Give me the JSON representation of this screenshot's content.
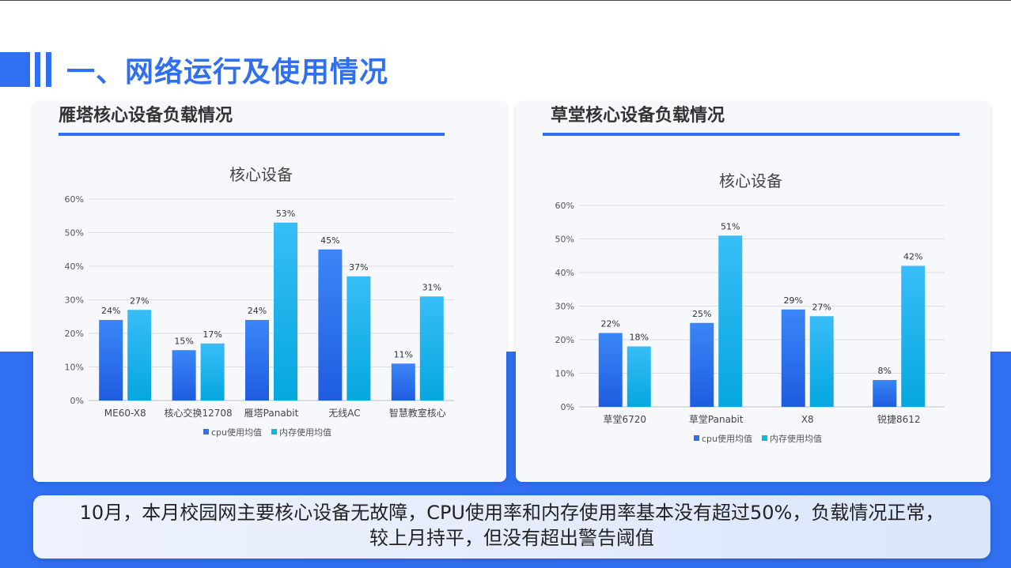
{
  "page": {
    "title": "一、网络运行及使用情况",
    "summary_line1": "10月，本月校园网主要核心设备无故障，CPU使用率和内存使用率基本没有超过50%，负载情况正常，",
    "summary_line2": "较上月持平，但没有超出警告阈值"
  },
  "panels": [
    {
      "title": "雁塔核心设备负载情况"
    },
    {
      "title": "草堂核心设备负载情况"
    }
  ],
  "colors": {
    "accent": "#2f6ff0",
    "cpu": "#2f6ff0",
    "mem": "#12b3ea"
  },
  "chart_data": [
    {
      "type": "bar",
      "title": "核心设备",
      "categories": [
        "ME60-X8",
        "核心交换12708",
        "雁塔Panabit",
        "无线AC",
        "智慧教室核心"
      ],
      "series": [
        {
          "name": "cpu使用均值",
          "values": [
            24,
            15,
            24,
            45,
            11
          ]
        },
        {
          "name": "内存使用均值",
          "values": [
            27,
            17,
            53,
            37,
            31
          ]
        }
      ],
      "ylim": [
        0,
        60
      ],
      "yticks": [
        "0%",
        "10%",
        "20%",
        "30%",
        "40%",
        "50%",
        "60%"
      ],
      "legend": "bottom",
      "grid": true
    },
    {
      "type": "bar",
      "title": "核心设备",
      "categories": [
        "草堂6720",
        "草堂Panabit",
        "X8",
        "锐捷8612"
      ],
      "series": [
        {
          "name": "cpu使用均值",
          "values": [
            22,
            25,
            29,
            8
          ]
        },
        {
          "name": "内存使用均值",
          "values": [
            18,
            51,
            27,
            42
          ]
        }
      ],
      "ylim": [
        0,
        60
      ],
      "yticks": [
        "0%",
        "10%",
        "20%",
        "30%",
        "40%",
        "50%",
        "60%"
      ],
      "legend": "bottom",
      "grid": true
    }
  ]
}
